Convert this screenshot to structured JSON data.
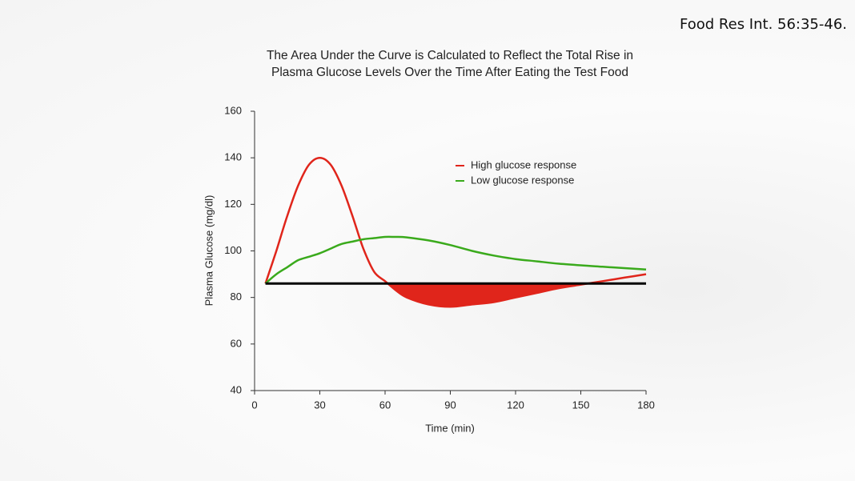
{
  "chart_data": {
    "type": "line",
    "title": "The Area Under the Curve is Calculated to Reflect the Total Rise in Plasma Glucose Levels Over the Time After Eating the Test Food",
    "source": "Food Res Int. 56:35-46.",
    "x_label": "Time (min)",
    "y_label": "Plasma Glucose (mg/dl)",
    "x": [
      5,
      10,
      15,
      20,
      25,
      30,
      35,
      40,
      45,
      50,
      55,
      60,
      65,
      70,
      80,
      90,
      100,
      110,
      120,
      130,
      140,
      150,
      160,
      170,
      180
    ],
    "series": [
      {
        "name": "High glucose response",
        "color": "#e0251b",
        "values": [
          86,
          100,
          115,
          128,
          137,
          140,
          137,
          128,
          115,
          101,
          91,
          87,
          83,
          80,
          77,
          76,
          77,
          78,
          80,
          82,
          84,
          85.5,
          87,
          88.5,
          90
        ]
      },
      {
        "name": "Low glucose response",
        "color": "#3aaa1c",
        "values": [
          86,
          90,
          93,
          96,
          97.5,
          99,
          101,
          103,
          104,
          105,
          105.5,
          106,
          106,
          105.8,
          104.5,
          102.5,
          100,
          98,
          96.5,
          95.5,
          94.5,
          93.8,
          93.2,
          92.6,
          92
        ]
      }
    ],
    "baseline": {
      "value": 86,
      "x": [
        5,
        180
      ],
      "color": "#000000"
    },
    "fill_below_baseline": {
      "series": 0,
      "color": "#e0251b"
    },
    "xlim": [
      0,
      180
    ],
    "xticks": [
      0,
      30,
      60,
      90,
      120,
      150,
      180
    ],
    "ylim": [
      40,
      160
    ],
    "yticks": [
      40,
      60,
      80,
      100,
      120,
      140,
      160
    ],
    "grid": false,
    "legend": "upper right"
  }
}
